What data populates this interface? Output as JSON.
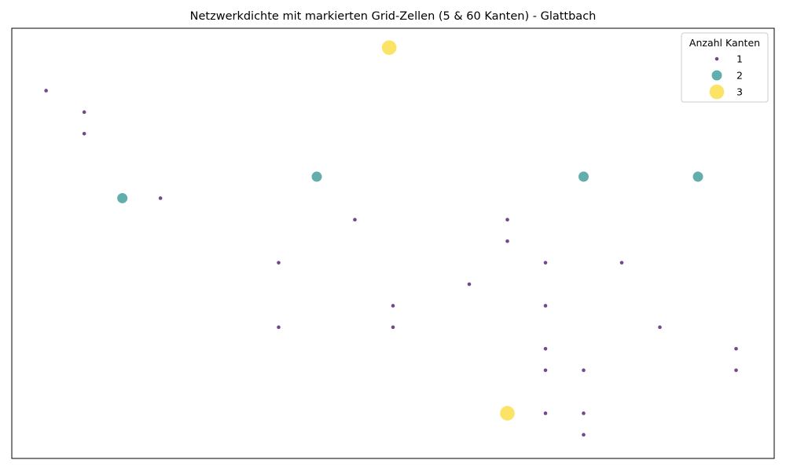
{
  "chart_data": {
    "type": "scatter",
    "title": "Netzwerkdichte mit markierten Grid-Zellen (5 & 60 Kanten) - Glattbach",
    "xlabel": "",
    "ylabel": "",
    "grid": false,
    "axes_ticks": false,
    "legend": {
      "title": "Anzahl Kanten",
      "placement": "top-right",
      "entries": [
        {
          "label": "1",
          "value": 1,
          "color": "#6c3d84"
        },
        {
          "label": "2",
          "value": 2,
          "color": "#5aaaa8"
        },
        {
          "label": "3",
          "value": 3,
          "color": "#fbe35d"
        }
      ]
    },
    "xlim": [
      0,
      20
    ],
    "ylim": [
      0,
      20
    ],
    "points": [
      {
        "x": 9.9,
        "y": 19.1,
        "v": 3
      },
      {
        "x": 0.9,
        "y": 17.1,
        "v": 1
      },
      {
        "x": 1.9,
        "y": 16.1,
        "v": 1
      },
      {
        "x": 1.9,
        "y": 15.1,
        "v": 1
      },
      {
        "x": 2.9,
        "y": 12.1,
        "v": 2
      },
      {
        "x": 3.9,
        "y": 12.1,
        "v": 1
      },
      {
        "x": 8.0,
        "y": 13.1,
        "v": 2
      },
      {
        "x": 15.0,
        "y": 13.1,
        "v": 2
      },
      {
        "x": 18.0,
        "y": 13.1,
        "v": 2
      },
      {
        "x": 9.0,
        "y": 11.1,
        "v": 1
      },
      {
        "x": 13.0,
        "y": 11.1,
        "v": 1
      },
      {
        "x": 13.0,
        "y": 10.1,
        "v": 1
      },
      {
        "x": 7.0,
        "y": 9.1,
        "v": 1
      },
      {
        "x": 14.0,
        "y": 9.1,
        "v": 1
      },
      {
        "x": 16.0,
        "y": 9.1,
        "v": 1
      },
      {
        "x": 12.0,
        "y": 8.1,
        "v": 1
      },
      {
        "x": 10.0,
        "y": 7.1,
        "v": 1
      },
      {
        "x": 14.0,
        "y": 7.1,
        "v": 1
      },
      {
        "x": 7.0,
        "y": 6.1,
        "v": 1
      },
      {
        "x": 10.0,
        "y": 6.1,
        "v": 1
      },
      {
        "x": 17.0,
        "y": 6.1,
        "v": 1
      },
      {
        "x": 14.0,
        "y": 5.1,
        "v": 1
      },
      {
        "x": 19.0,
        "y": 5.1,
        "v": 1
      },
      {
        "x": 14.0,
        "y": 4.1,
        "v": 1
      },
      {
        "x": 15.0,
        "y": 4.1,
        "v": 1
      },
      {
        "x": 19.0,
        "y": 4.1,
        "v": 1
      },
      {
        "x": 13.0,
        "y": 2.1,
        "v": 3
      },
      {
        "x": 14.0,
        "y": 2.1,
        "v": 1
      },
      {
        "x": 15.0,
        "y": 2.1,
        "v": 1
      },
      {
        "x": 15.0,
        "y": 1.1,
        "v": 1
      }
    ]
  }
}
